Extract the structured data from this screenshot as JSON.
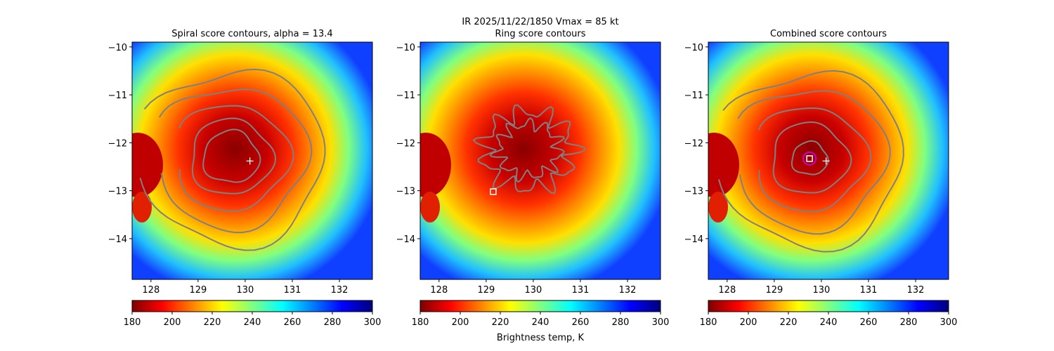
{
  "suptitle": "IR  2025/11/22/1850    Vmax = 85 kt",
  "colorbar_label": "Brightness temp, K",
  "colormap": [
    "#800000",
    "#ff0000",
    "#ff8000",
    "#ffff00",
    "#80ff80",
    "#00ffff",
    "#0080ff",
    "#0000ff",
    "#000080"
  ],
  "contour_color": "#808080",
  "chart_data": [
    {
      "type": "heatmap",
      "title": "Spiral score contours, alpha = 13.4",
      "xlim": [
        127.6,
        132.7
      ],
      "ylim": [
        -14.85,
        -9.9
      ],
      "xticks": [
        "128",
        "129",
        "130",
        "131",
        "132"
      ],
      "yticks": [
        "−10",
        "−11",
        "−12",
        "−13",
        "−14"
      ],
      "xtick_values": [
        128,
        129,
        130,
        131,
        132
      ],
      "ytick_values": [
        -10,
        -11,
        -12,
        -13,
        -14
      ],
      "colorbar": {
        "range": [
          180,
          300
        ],
        "ticks": [
          "180",
          "200",
          "220",
          "240",
          "260",
          "280",
          "300"
        ],
        "tick_values": [
          180,
          200,
          220,
          240,
          260,
          280,
          300
        ]
      },
      "center_marker": {
        "lon": 130.1,
        "lat": -12.38,
        "marker": "+",
        "color": "#ffffff"
      },
      "contour_center": {
        "lon": 129.7,
        "lat": -12.3
      },
      "contour_radii_deg": [
        0.55,
        0.8,
        1.12,
        1.5,
        1.85
      ],
      "estimated_center": null
    },
    {
      "type": "heatmap",
      "title": "Ring score contours",
      "xlim": [
        127.6,
        132.7
      ],
      "ylim": [
        -14.85,
        -9.9
      ],
      "xticks": [
        "128",
        "129",
        "130",
        "131",
        "132"
      ],
      "yticks": [
        "−10",
        "−11",
        "−12",
        "−13",
        "−14"
      ],
      "xtick_values": [
        128,
        129,
        130,
        131,
        132
      ],
      "ytick_values": [
        -10,
        -11,
        -12,
        -13,
        -14
      ],
      "colorbar": {
        "range": [
          180,
          300
        ],
        "ticks": [
          "180",
          "200",
          "220",
          "240",
          "260",
          "280",
          "300"
        ],
        "tick_values": [
          180,
          200,
          220,
          240,
          260,
          280,
          300
        ]
      },
      "center_marker": null,
      "ring_center": {
        "lon": 129.9,
        "lat": -12.15
      },
      "ring_radii_deg": [
        0.65,
        0.95
      ],
      "estimated_center": {
        "lon": 129.15,
        "lat": -13.02,
        "marker": "square",
        "color": "#ffffff"
      }
    },
    {
      "type": "heatmap",
      "title": "Combined score contours",
      "xlim": [
        127.6,
        132.7
      ],
      "ylim": [
        -14.85,
        -9.9
      ],
      "xticks": [
        "128",
        "129",
        "130",
        "131",
        "132"
      ],
      "yticks": [
        "−10",
        "−11",
        "−12",
        "−13",
        "−14"
      ],
      "xtick_values": [
        128,
        129,
        130,
        131,
        132
      ],
      "ytick_values": [
        -10,
        -11,
        -12,
        -13,
        -14
      ],
      "colorbar": {
        "range": [
          180,
          300
        ],
        "ticks": [
          "180",
          "200",
          "220",
          "240",
          "260",
          "280",
          "300"
        ],
        "tick_values": [
          180,
          200,
          220,
          240,
          260,
          280,
          300
        ]
      },
      "center_marker": {
        "lon": 130.1,
        "lat": -12.38,
        "marker": "+",
        "color": "#ffffff"
      },
      "contour_center": {
        "lon": 129.75,
        "lat": -12.33
      },
      "contour_radii_deg": [
        0.35,
        0.75,
        1.1,
        1.5,
        1.85
      ],
      "estimated_center": {
        "lon": 129.75,
        "lat": -12.33,
        "marker": "square",
        "color": "#ffffff"
      },
      "highlight_circle": {
        "lon": 129.75,
        "lat": -12.33,
        "color": "#cc00cc"
      }
    }
  ]
}
